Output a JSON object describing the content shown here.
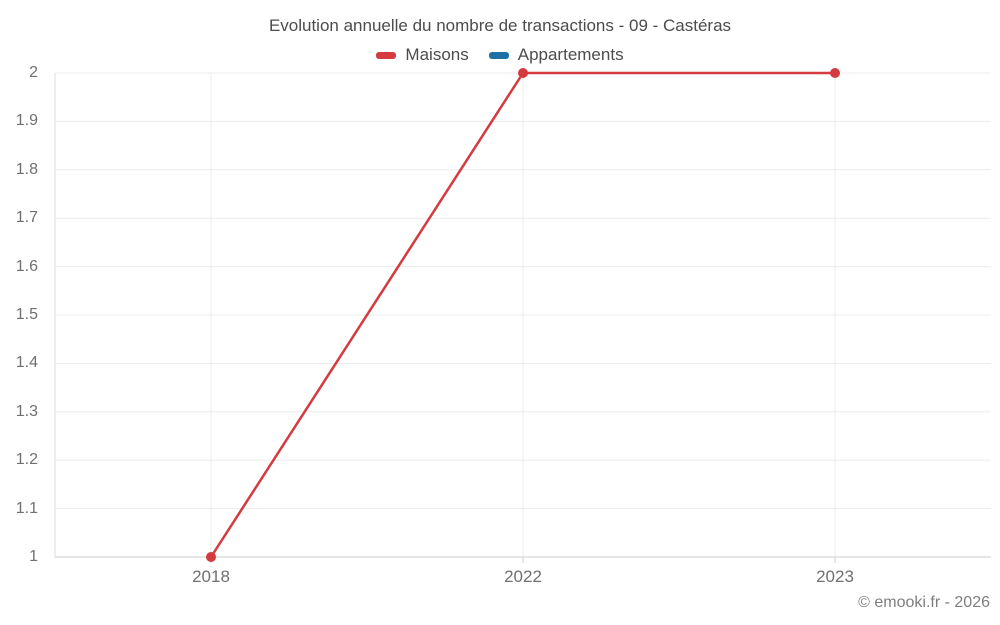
{
  "header": {
    "title": "Evolution annuelle du nombre de transactions - 09 - Castéras"
  },
  "legend": [
    {
      "label": "Maisons",
      "color": "#d53a40"
    },
    {
      "label": "Appartements",
      "color": "#1d70a6"
    }
  ],
  "watermark": "© emooki.fr - 2026",
  "chart_data": {
    "type": "line",
    "title": "Evolution annuelle du nombre de transactions - 09 - Castéras",
    "categories": [
      "2018",
      "2022",
      "2023"
    ],
    "series": [
      {
        "name": "Maisons",
        "color": "#d53a40",
        "values": [
          1,
          2,
          2
        ]
      },
      {
        "name": "Appartements",
        "color": "#1d70a6",
        "values": []
      }
    ],
    "ylim": [
      1,
      2
    ],
    "ytick_step": 0.1,
    "yticks": [
      "1",
      "1.1",
      "1.2",
      "1.3",
      "1.4",
      "1.5",
      "1.6",
      "1.7",
      "1.8",
      "1.9",
      "2"
    ],
    "xlabel": "",
    "ylabel": "",
    "grid": true,
    "legend_position": "top",
    "point_radius": 5,
    "line_width": 2.5
  }
}
